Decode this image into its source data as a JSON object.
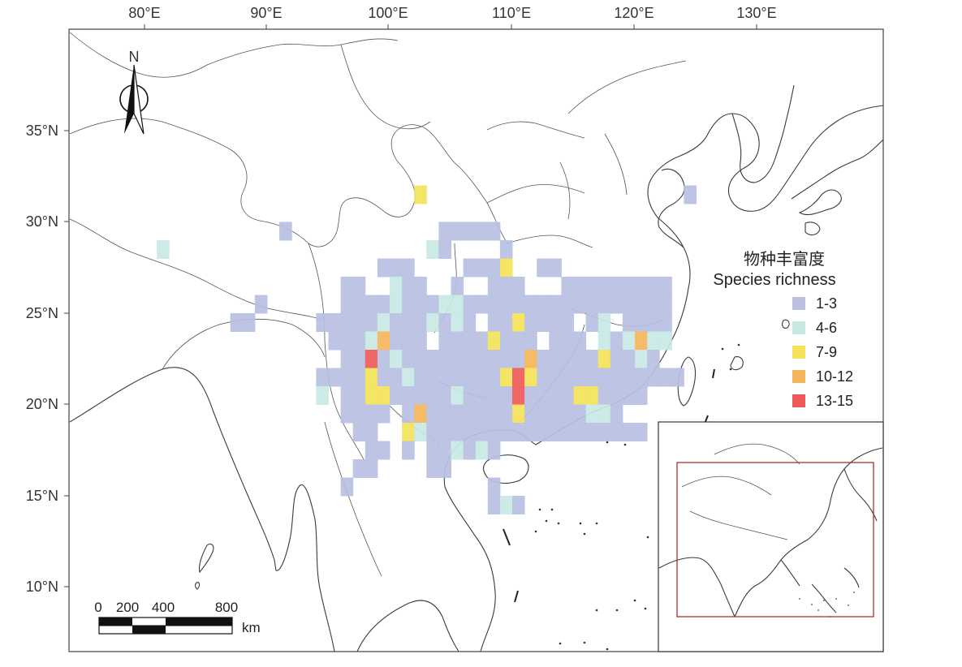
{
  "map": {
    "lon_labels": [
      "80°E",
      "90°E",
      "100°E",
      "110°E",
      "120°E",
      "130°E"
    ],
    "lat_labels": [
      "35°N",
      "30°N",
      "25°N",
      "20°N",
      "15°N",
      "10°N"
    ],
    "north_label": "N"
  },
  "legend": {
    "title_cn": "物种丰富度",
    "title_en": "Species richness",
    "classes": [
      {
        "label": "1-3",
        "color": "#b9c0e2"
      },
      {
        "label": "4-6",
        "color": "#c8e8e4"
      },
      {
        "label": "7-9",
        "color": "#f4e35a"
      },
      {
        "label": "10-12",
        "color": "#f5b55a"
      },
      {
        "label": "13-15",
        "color": "#ee5a5a"
      }
    ]
  },
  "scale_bar": {
    "labels": [
      "0",
      "200",
      "400",
      "800"
    ],
    "unit": "km"
  },
  "richness_grid": {
    "cell_size_deg": 1,
    "cells": [
      [
        102,
        31,
        3
      ],
      [
        91,
        29,
        1
      ],
      [
        81,
        28,
        2
      ],
      [
        124,
        31,
        1
      ],
      [
        104,
        29,
        1
      ],
      [
        105,
        29,
        1
      ],
      [
        106,
        29,
        1
      ],
      [
        107,
        29,
        1
      ],
      [
        108,
        29,
        1
      ],
      [
        103,
        28,
        2
      ],
      [
        104,
        28,
        1
      ],
      [
        109,
        28,
        1
      ],
      [
        99,
        27,
        1
      ],
      [
        100,
        27,
        1
      ],
      [
        101,
        27,
        1
      ],
      [
        106,
        27,
        1
      ],
      [
        107,
        27,
        1
      ],
      [
        108,
        27,
        1
      ],
      [
        109,
        27,
        3
      ],
      [
        112,
        27,
        1
      ],
      [
        113,
        27,
        1
      ],
      [
        96,
        26,
        1
      ],
      [
        97,
        26,
        1
      ],
      [
        100,
        26,
        2
      ],
      [
        101,
        26,
        1
      ],
      [
        102,
        26,
        1
      ],
      [
        105,
        26,
        1
      ],
      [
        108,
        26,
        1
      ],
      [
        109,
        26,
        1
      ],
      [
        110,
        26,
        1
      ],
      [
        114,
        26,
        1
      ],
      [
        115,
        26,
        1
      ],
      [
        116,
        26,
        1
      ],
      [
        117,
        26,
        1
      ],
      [
        118,
        26,
        1
      ],
      [
        119,
        26,
        1
      ],
      [
        120,
        26,
        1
      ],
      [
        121,
        26,
        1
      ],
      [
        122,
        26,
        1
      ],
      [
        89,
        25,
        1
      ],
      [
        96,
        25,
        1
      ],
      [
        97,
        25,
        1
      ],
      [
        98,
        25,
        1
      ],
      [
        99,
        25,
        1
      ],
      [
        100,
        25,
        2
      ],
      [
        101,
        25,
        1
      ],
      [
        102,
        25,
        1
      ],
      [
        103,
        25,
        1
      ],
      [
        104,
        25,
        2
      ],
      [
        105,
        25,
        2
      ],
      [
        106,
        25,
        1
      ],
      [
        107,
        25,
        1
      ],
      [
        108,
        25,
        1
      ],
      [
        109,
        25,
        1
      ],
      [
        110,
        25,
        1
      ],
      [
        111,
        25,
        1
      ],
      [
        112,
        25,
        1
      ],
      [
        113,
        25,
        1
      ],
      [
        114,
        25,
        1
      ],
      [
        115,
        25,
        1
      ],
      [
        116,
        25,
        1
      ],
      [
        117,
        25,
        1
      ],
      [
        118,
        25,
        1
      ],
      [
        119,
        25,
        1
      ],
      [
        120,
        25,
        1
      ],
      [
        121,
        25,
        1
      ],
      [
        122,
        25,
        1
      ],
      [
        87,
        24,
        1
      ],
      [
        88,
        24,
        1
      ],
      [
        94,
        24,
        1
      ],
      [
        95,
        24,
        1
      ],
      [
        96,
        24,
        1
      ],
      [
        97,
        24,
        1
      ],
      [
        98,
        24,
        1
      ],
      [
        99,
        24,
        2
      ],
      [
        100,
        24,
        1
      ],
      [
        101,
        24,
        1
      ],
      [
        102,
        24,
        1
      ],
      [
        103,
        24,
        2
      ],
      [
        104,
        24,
        1
      ],
      [
        105,
        24,
        2
      ],
      [
        106,
        24,
        1
      ],
      [
        108,
        24,
        1
      ],
      [
        109,
        24,
        1
      ],
      [
        110,
        24,
        3
      ],
      [
        111,
        24,
        1
      ],
      [
        112,
        24,
        1
      ],
      [
        113,
        24,
        1
      ],
      [
        114,
        24,
        1
      ],
      [
        116,
        24,
        1
      ],
      [
        117,
        24,
        2
      ],
      [
        119,
        24,
        1
      ],
      [
        120,
        24,
        1
      ],
      [
        121,
        24,
        1
      ],
      [
        122,
        24,
        1
      ],
      [
        95,
        23,
        1
      ],
      [
        96,
        23,
        1
      ],
      [
        97,
        23,
        1
      ],
      [
        98,
        23,
        2
      ],
      [
        99,
        23,
        4
      ],
      [
        100,
        23,
        1
      ],
      [
        101,
        23,
        1
      ],
      [
        102,
        23,
        1
      ],
      [
        104,
        23,
        1
      ],
      [
        105,
        23,
        1
      ],
      [
        106,
        23,
        1
      ],
      [
        107,
        23,
        1
      ],
      [
        108,
        23,
        3
      ],
      [
        109,
        23,
        1
      ],
      [
        110,
        23,
        1
      ],
      [
        111,
        23,
        1
      ],
      [
        113,
        23,
        1
      ],
      [
        114,
        23,
        1
      ],
      [
        115,
        23,
        1
      ],
      [
        117,
        23,
        2
      ],
      [
        118,
        23,
        1
      ],
      [
        119,
        23,
        2
      ],
      [
        120,
        23,
        4
      ],
      [
        121,
        23,
        2
      ],
      [
        122,
        23,
        2
      ],
      [
        96,
        22,
        1
      ],
      [
        97,
        22,
        1
      ],
      [
        98,
        22,
        5
      ],
      [
        99,
        22,
        1
      ],
      [
        100,
        22,
        2
      ],
      [
        101,
        22,
        1
      ],
      [
        102,
        22,
        1
      ],
      [
        103,
        22,
        1
      ],
      [
        104,
        22,
        1
      ],
      [
        105,
        22,
        1
      ],
      [
        106,
        22,
        1
      ],
      [
        107,
        22,
        1
      ],
      [
        108,
        22,
        1
      ],
      [
        109,
        22,
        1
      ],
      [
        110,
        22,
        1
      ],
      [
        111,
        22,
        4
      ],
      [
        112,
        22,
        1
      ],
      [
        113,
        22,
        1
      ],
      [
        114,
        22,
        1
      ],
      [
        115,
        22,
        1
      ],
      [
        116,
        22,
        1
      ],
      [
        117,
        22,
        3
      ],
      [
        118,
        22,
        1
      ],
      [
        119,
        22,
        1
      ],
      [
        120,
        22,
        2
      ],
      [
        121,
        22,
        1
      ],
      [
        94,
        21,
        1
      ],
      [
        95,
        21,
        1
      ],
      [
        96,
        21,
        1
      ],
      [
        97,
        21,
        1
      ],
      [
        98,
        21,
        3
      ],
      [
        99,
        21,
        1
      ],
      [
        100,
        21,
        1
      ],
      [
        101,
        21,
        2
      ],
      [
        102,
        21,
        1
      ],
      [
        103,
        21,
        1
      ],
      [
        104,
        21,
        1
      ],
      [
        105,
        21,
        1
      ],
      [
        106,
        21,
        1
      ],
      [
        107,
        21,
        1
      ],
      [
        108,
        21,
        1
      ],
      [
        109,
        21,
        3
      ],
      [
        110,
        21,
        5
      ],
      [
        111,
        21,
        3
      ],
      [
        112,
        21,
        1
      ],
      [
        113,
        21,
        1
      ],
      [
        114,
        21,
        1
      ],
      [
        115,
        21,
        1
      ],
      [
        116,
        21,
        1
      ],
      [
        117,
        21,
        1
      ],
      [
        118,
        21,
        1
      ],
      [
        119,
        21,
        1
      ],
      [
        120,
        21,
        1
      ],
      [
        121,
        21,
        1
      ],
      [
        122,
        21,
        1
      ],
      [
        123,
        21,
        1
      ],
      [
        94,
        20,
        2
      ],
      [
        96,
        20,
        1
      ],
      [
        97,
        20,
        1
      ],
      [
        98,
        20,
        3
      ],
      [
        99,
        20,
        3
      ],
      [
        100,
        20,
        1
      ],
      [
        101,
        20,
        1
      ],
      [
        102,
        20,
        1
      ],
      [
        103,
        20,
        1
      ],
      [
        104,
        20,
        1
      ],
      [
        105,
        20,
        2
      ],
      [
        106,
        20,
        1
      ],
      [
        107,
        20,
        1
      ],
      [
        108,
        20,
        1
      ],
      [
        109,
        20,
        1
      ],
      [
        110,
        20,
        5
      ],
      [
        111,
        20,
        1
      ],
      [
        112,
        20,
        1
      ],
      [
        113,
        20,
        1
      ],
      [
        114,
        20,
        1
      ],
      [
        115,
        20,
        3
      ],
      [
        116,
        20,
        3
      ],
      [
        117,
        20,
        1
      ],
      [
        118,
        20,
        1
      ],
      [
        119,
        20,
        1
      ],
      [
        120,
        20,
        1
      ],
      [
        96,
        19,
        1
      ],
      [
        97,
        19,
        1
      ],
      [
        98,
        19,
        1
      ],
      [
        99,
        19,
        1
      ],
      [
        101,
        19,
        1
      ],
      [
        102,
        19,
        4
      ],
      [
        103,
        19,
        1
      ],
      [
        104,
        19,
        1
      ],
      [
        105,
        19,
        1
      ],
      [
        106,
        19,
        1
      ],
      [
        107,
        19,
        1
      ],
      [
        108,
        19,
        1
      ],
      [
        109,
        19,
        1
      ],
      [
        110,
        19,
        3
      ],
      [
        111,
        19,
        1
      ],
      [
        112,
        19,
        1
      ],
      [
        113,
        19,
        1
      ],
      [
        114,
        19,
        1
      ],
      [
        115,
        19,
        1
      ],
      [
        116,
        19,
        2
      ],
      [
        117,
        19,
        2
      ],
      [
        118,
        19,
        1
      ],
      [
        97,
        18,
        1
      ],
      [
        98,
        18,
        1
      ],
      [
        101,
        18,
        3
      ],
      [
        102,
        18,
        2
      ],
      [
        103,
        18,
        1
      ],
      [
        104,
        18,
        1
      ],
      [
        105,
        18,
        1
      ],
      [
        106,
        18,
        1
      ],
      [
        107,
        18,
        1
      ],
      [
        108,
        18,
        1
      ],
      [
        109,
        18,
        1
      ],
      [
        110,
        18,
        1
      ],
      [
        111,
        18,
        1
      ],
      [
        112,
        18,
        1
      ],
      [
        113,
        18,
        1
      ],
      [
        114,
        18,
        1
      ],
      [
        115,
        18,
        1
      ],
      [
        116,
        18,
        1
      ],
      [
        117,
        18,
        1
      ],
      [
        118,
        18,
        1
      ],
      [
        119,
        18,
        1
      ],
      [
        120,
        18,
        1
      ],
      [
        98,
        17,
        1
      ],
      [
        99,
        17,
        1
      ],
      [
        101,
        17,
        1
      ],
      [
        103,
        17,
        1
      ],
      [
        104,
        17,
        1
      ],
      [
        105,
        17,
        2
      ],
      [
        106,
        17,
        1
      ],
      [
        107,
        17,
        2
      ],
      [
        108,
        17,
        1
      ],
      [
        97,
        16,
        1
      ],
      [
        98,
        16,
        1
      ],
      [
        103,
        16,
        1
      ],
      [
        104,
        16,
        1
      ],
      [
        96,
        15,
        1
      ],
      [
        108,
        15,
        1
      ],
      [
        108,
        14,
        1
      ],
      [
        109,
        14,
        2
      ],
      [
        110,
        14,
        1
      ]
    ]
  }
}
